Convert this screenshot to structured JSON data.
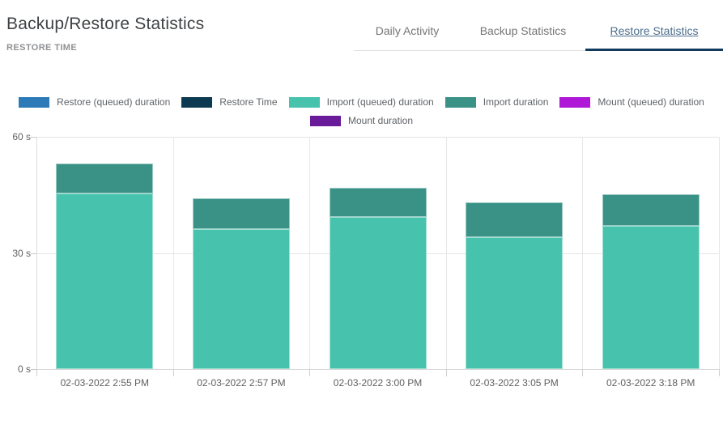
{
  "header": {
    "title": "Backup/Restore Statistics",
    "subtitle": "RESTORE TIME"
  },
  "tabs": [
    {
      "label": "Daily Activity",
      "active": false
    },
    {
      "label": "Backup Statistics",
      "active": false
    },
    {
      "label": "Restore Statistics",
      "active": true
    }
  ],
  "colors": {
    "active_tab_underline": "#123a5c",
    "active_tab_text": "#4b6e8c",
    "inactive_tab_text": "#757575"
  },
  "chart_data": {
    "type": "bar",
    "stacked": true,
    "title": "RESTORE TIME",
    "xlabel": "",
    "ylabel": "seconds",
    "ylim": [
      0,
      60
    ],
    "grid": true,
    "legend_position": "top",
    "categories": [
      "02-03-2022 2:55 PM",
      "02-03-2022 2:57 PM",
      "02-03-2022 3:00 PM",
      "02-03-2022 3:05 PM",
      "02-03-2022 3:18 PM"
    ],
    "yticks": [
      {
        "value": 0,
        "label": "0 s"
      },
      {
        "value": 30,
        "label": "30 s"
      },
      {
        "value": 60,
        "label": "60 s"
      }
    ],
    "series": [
      {
        "name": "Restore (queued) duration",
        "color": "#2c7bb8",
        "values": [
          0,
          0,
          0,
          0,
          0
        ]
      },
      {
        "name": "Restore Time",
        "color": "#0d3a53",
        "values": [
          0,
          0,
          0,
          0,
          0
        ]
      },
      {
        "name": "Import (queued) duration",
        "color": "#47c3ad",
        "values": [
          45.4,
          36.2,
          39.2,
          34.0,
          37.0
        ]
      },
      {
        "name": "Import duration",
        "color": "#3a9185",
        "values": [
          7.7,
          7.9,
          7.7,
          9.0,
          8.2
        ]
      },
      {
        "name": "Mount (queued) duration",
        "color": "#ae18d6",
        "values": [
          0,
          0,
          0,
          0,
          0
        ]
      },
      {
        "name": "Mount duration",
        "color": "#6a1b9a",
        "values": [
          0,
          0,
          0,
          0,
          0
        ]
      }
    ],
    "legend_rows": [
      [
        0,
        1,
        2,
        3,
        4
      ],
      [
        5
      ]
    ]
  }
}
